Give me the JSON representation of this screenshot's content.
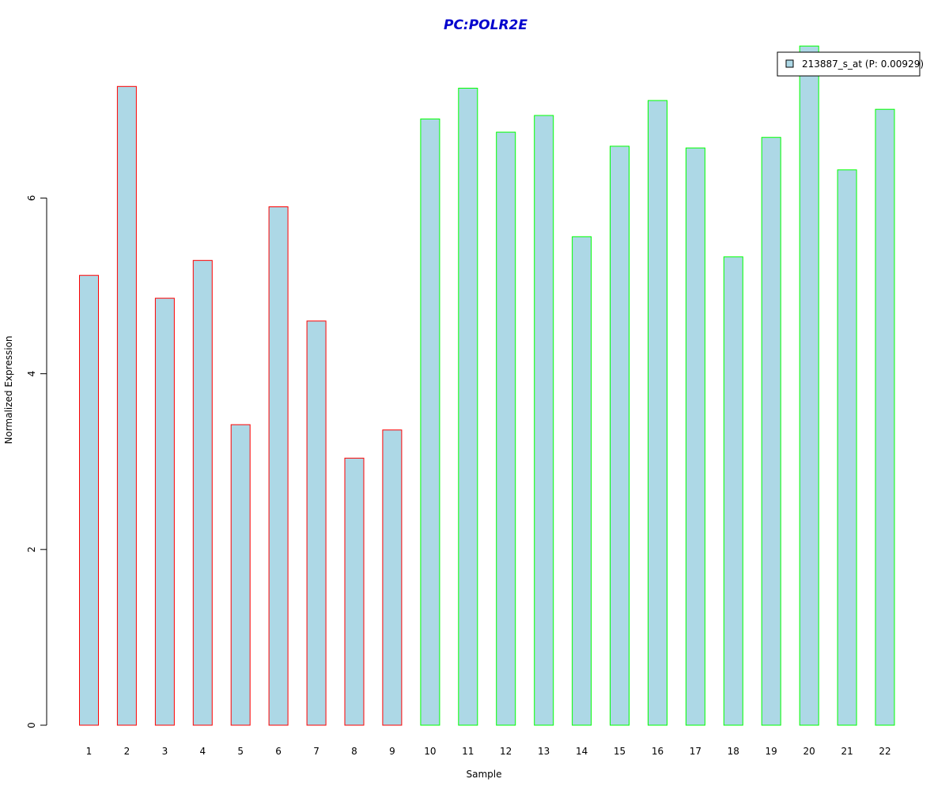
{
  "chart_data": {
    "type": "bar",
    "title": "PC:POLR2E",
    "xlabel": "Sample",
    "ylabel": "Normalized Expression",
    "categories": [
      "1",
      "2",
      "3",
      "4",
      "5",
      "6",
      "7",
      "8",
      "9",
      "10",
      "11",
      "12",
      "13",
      "14",
      "15",
      "16",
      "17",
      "18",
      "19",
      "20",
      "21",
      "22"
    ],
    "series": [
      {
        "name": "213887_s_at (P: 0.00929)",
        "values": [
          5.12,
          7.27,
          4.86,
          5.29,
          3.42,
          5.9,
          4.6,
          3.04,
          3.36,
          6.9,
          7.25,
          6.75,
          6.94,
          5.56,
          6.59,
          7.11,
          6.57,
          5.33,
          6.69,
          7.73,
          6.32,
          7.01
        ]
      }
    ],
    "group_outline": [
      "red",
      "red",
      "red",
      "red",
      "red",
      "red",
      "red",
      "red",
      "red",
      "green",
      "green",
      "green",
      "green",
      "green",
      "green",
      "green",
      "green",
      "green",
      "green",
      "green",
      "green",
      "green"
    ],
    "ylim": [
      0,
      7.73
    ],
    "yticks": [
      0,
      2,
      4,
      6
    ],
    "grid": false,
    "legend_position": "top-right",
    "colors": {
      "bar_fill": "#add8e6",
      "outline_red": "#ff0000",
      "outline_green": "#00ff00",
      "title": "#0000cd",
      "axis": "#000000"
    }
  }
}
